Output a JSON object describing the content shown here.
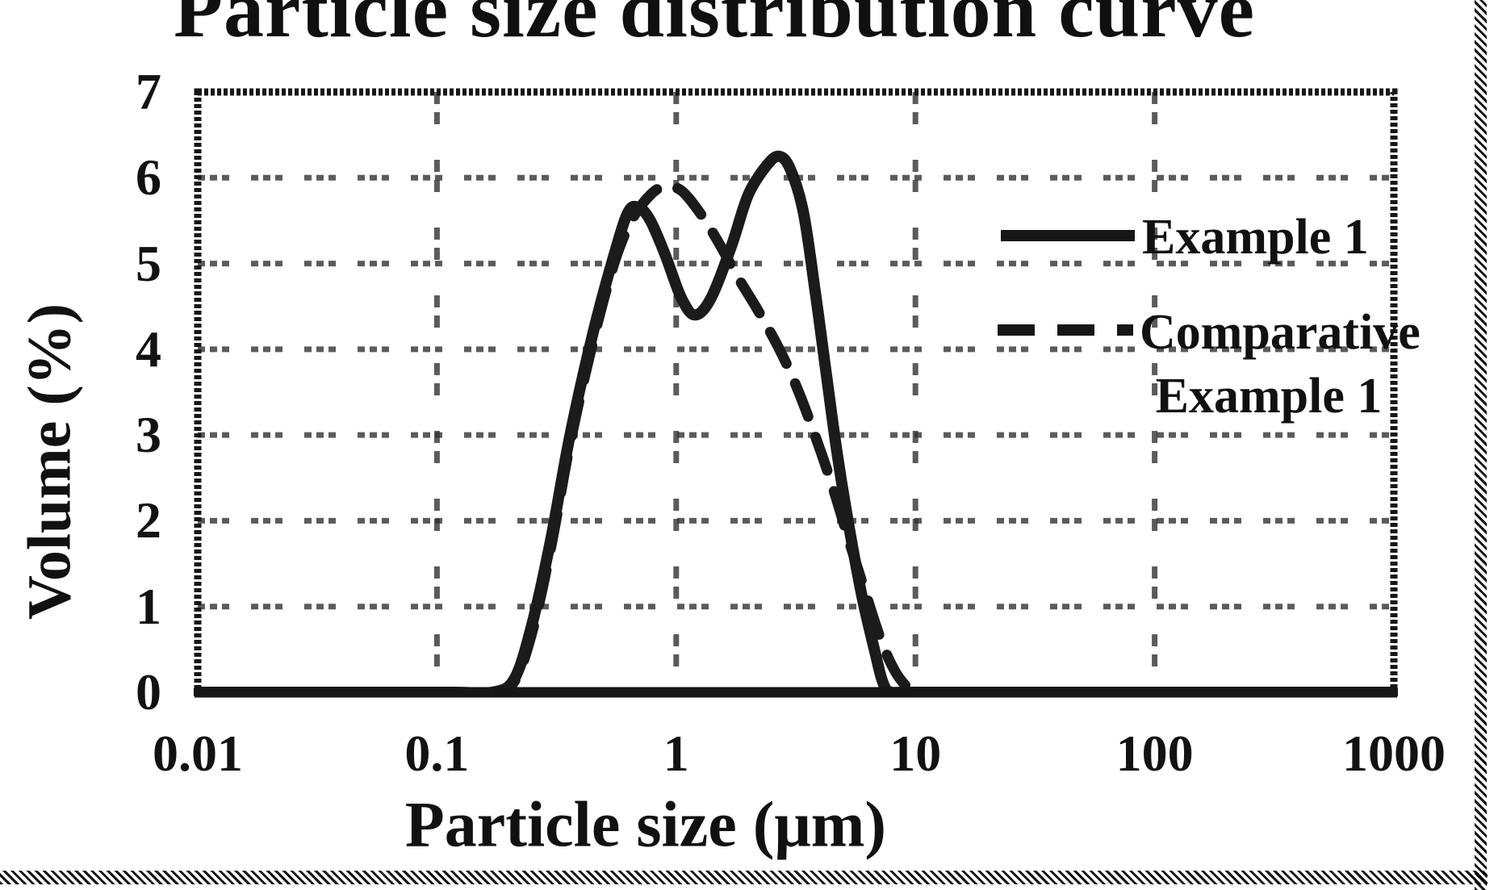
{
  "figure": {
    "title": "Particle size distribution curve",
    "x_axis": {
      "title": "Particle size (μm)",
      "tick_labels": [
        "0.01",
        "0.1",
        "1",
        "10",
        "100",
        "1000"
      ]
    },
    "y_axis": {
      "title": "Volume (%)",
      "tick_labels": [
        "7",
        "6",
        "5",
        "4",
        "3",
        "2",
        "1",
        "0"
      ]
    },
    "legend": {
      "items": [
        {
          "label": "Example 1",
          "label_lines": [
            "Example 1"
          ],
          "line_style": "solid"
        },
        {
          "label": "Comparative Example 1",
          "label_lines": [
            "Comparative",
            "Example 1"
          ],
          "line_style": "dashed"
        }
      ]
    }
  },
  "chart_data": {
    "type": "line",
    "title": "Particle size distribution curve",
    "xlabel": "Particle size (μm)",
    "ylabel": "Volume (%)",
    "x_scale": "log",
    "xlim": [
      0.01,
      1000
    ],
    "ylim": [
      0,
      7
    ],
    "x_ticks": [
      0.01,
      0.1,
      1,
      10,
      100,
      1000
    ],
    "y_ticks": [
      0,
      1,
      2,
      3,
      4,
      5,
      6,
      7
    ],
    "x_gridlines": [
      0.1,
      1,
      10,
      100
    ],
    "y_gridlines": [
      1,
      2,
      3,
      4,
      5,
      6
    ],
    "grid": true,
    "legend_position": "upper right",
    "series": [
      {
        "name": "Example 1",
        "style": "solid",
        "color": "#1b1b1b",
        "points": [
          [
            0.01,
            0
          ],
          [
            0.05,
            0
          ],
          [
            0.12,
            0
          ],
          [
            0.17,
            0
          ],
          [
            0.21,
            0.15
          ],
          [
            0.25,
            0.8
          ],
          [
            0.3,
            1.8
          ],
          [
            0.36,
            3.0
          ],
          [
            0.45,
            4.2
          ],
          [
            0.55,
            5.1
          ],
          [
            0.63,
            5.6
          ],
          [
            0.7,
            5.65
          ],
          [
            0.78,
            5.5
          ],
          [
            0.9,
            5.1
          ],
          [
            1.05,
            4.6
          ],
          [
            1.2,
            4.4
          ],
          [
            1.4,
            4.6
          ],
          [
            1.7,
            5.2
          ],
          [
            2.0,
            5.8
          ],
          [
            2.4,
            6.15
          ],
          [
            2.7,
            6.25
          ],
          [
            3.0,
            6.1
          ],
          [
            3.4,
            5.6
          ],
          [
            3.8,
            4.7
          ],
          [
            4.2,
            3.8
          ],
          [
            4.7,
            2.8
          ],
          [
            5.3,
            1.9
          ],
          [
            6.0,
            1.1
          ],
          [
            6.8,
            0.45
          ],
          [
            7.3,
            0.12
          ],
          [
            7.9,
            0
          ],
          [
            10,
            0
          ],
          [
            100,
            0
          ],
          [
            1000,
            0
          ]
        ]
      },
      {
        "name": "Comparative Example 1",
        "style": "dashed",
        "color": "#1b1b1b",
        "points": [
          [
            0.01,
            0
          ],
          [
            0.05,
            0
          ],
          [
            0.12,
            0
          ],
          [
            0.17,
            0
          ],
          [
            0.21,
            0.12
          ],
          [
            0.25,
            0.7
          ],
          [
            0.3,
            1.7
          ],
          [
            0.36,
            2.9
          ],
          [
            0.45,
            4.1
          ],
          [
            0.55,
            5.0
          ],
          [
            0.65,
            5.5
          ],
          [
            0.78,
            5.8
          ],
          [
            0.9,
            5.9
          ],
          [
            1.05,
            5.85
          ],
          [
            1.25,
            5.6
          ],
          [
            1.5,
            5.25
          ],
          [
            1.8,
            4.85
          ],
          [
            2.2,
            4.45
          ],
          [
            2.7,
            4.0
          ],
          [
            3.2,
            3.55
          ],
          [
            3.8,
            3.0
          ],
          [
            4.5,
            2.4
          ],
          [
            5.3,
            1.75
          ],
          [
            6.2,
            1.15
          ],
          [
            7.2,
            0.6
          ],
          [
            8.2,
            0.25
          ],
          [
            9.3,
            0.05
          ],
          [
            10,
            0
          ],
          [
            100,
            0
          ],
          [
            1000,
            0
          ]
        ]
      }
    ]
  },
  "colors": {
    "ink": "#161616",
    "grid": "#333333",
    "background": "#ffffff"
  }
}
